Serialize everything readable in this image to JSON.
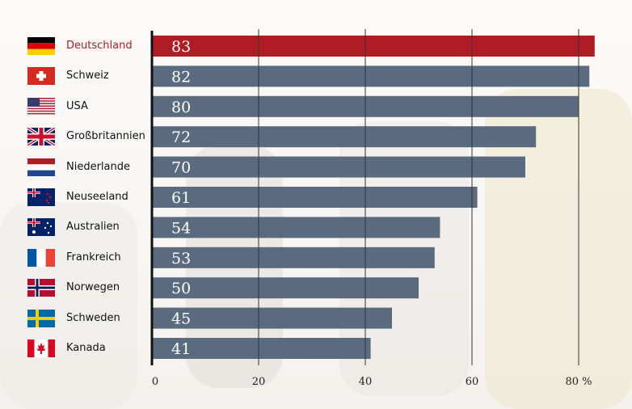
{
  "chart_data": {
    "type": "bar",
    "orientation": "horizontal",
    "categories": [
      "Deutschland",
      "Schweiz",
      "USA",
      "Großbritannien",
      "Niederlande",
      "Neuseeland",
      "Australien",
      "Frankreich",
      "Norwegen",
      "Schweden",
      "Kanada"
    ],
    "values": [
      83,
      82,
      80,
      72,
      70,
      61,
      54,
      53,
      50,
      45,
      41
    ],
    "highlight": "Deutschland",
    "xlim": [
      0,
      83
    ],
    "x_ticks": [
      "0",
      "20",
      "40",
      "60",
      "80 %"
    ],
    "x_tick_values": [
      0,
      20,
      40,
      60,
      80
    ],
    "grid": true,
    "colors": {
      "bar": "#5a6b80",
      "highlight": "#b01c24",
      "grid": "#333333",
      "axis": "#111111"
    }
  },
  "flags": [
    "flag-germany-icon",
    "flag-switzerland-icon",
    "flag-usa-icon",
    "flag-uk-icon",
    "flag-netherlands-icon",
    "flag-new-zealand-icon",
    "flag-australia-icon",
    "flag-france-icon",
    "flag-norway-icon",
    "flag-sweden-icon",
    "flag-canada-icon"
  ]
}
